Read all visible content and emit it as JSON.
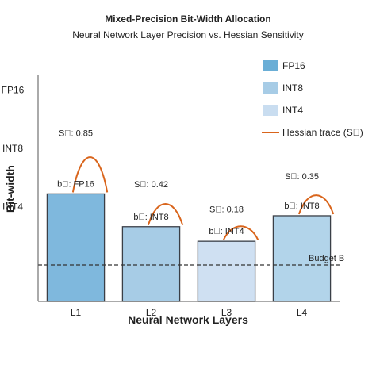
{
  "chart_data": {
    "type": "bar",
    "title": "Mixed-Precision Bit-Width Allocation",
    "subtitle": "Neural Network Layer Precision vs. Hessian Sensitivity",
    "xlabel": "Neural Network Layers",
    "ylabel": "Bit-width",
    "categories": [
      "L1",
      "L2",
      "L3",
      "L4"
    ],
    "values": [
      16,
      8,
      4,
      8
    ],
    "display_heights": [
      29.5,
      20.5,
      16.5,
      23.5
    ],
    "precision_labels": [
      "b\u0000: FP16",
      "b\u0000: INT8",
      "b\u0000: INT4",
      "b\u0000: INT8"
    ],
    "sensitivity": [
      0.85,
      0.42,
      0.18,
      0.35
    ],
    "sensitivity_labels": [
      "S\u0000: 0.85",
      "S\u0000: 0.42",
      "S\u0000: 0.18",
      "S\u0000: 0.35"
    ],
    "bar_colors": [
      "#7fb8dd",
      "#a7cce6",
      "#cfe0f2",
      "#b2d4ea"
    ],
    "y_ticks": [
      {
        "label": "FP16",
        "value": 58
      },
      {
        "label": "INT8",
        "value": 42
      },
      {
        "label": "INT4",
        "value": 26
      }
    ],
    "ylim": [
      0,
      62
    ],
    "budget": {
      "label": "Budget B",
      "value": 10
    },
    "legend_position": "top-right",
    "legend": [
      {
        "label": "FP16",
        "color": "#6aaed6",
        "kind": "box"
      },
      {
        "label": "INT8",
        "color": "#a7cce6",
        "kind": "box"
      },
      {
        "label": "INT4",
        "color": "#c9ddf0",
        "kind": "box"
      },
      {
        "label": "Hessian trace (S\u0000)",
        "color": "#d9651c",
        "kind": "line"
      }
    ],
    "trace_color": "#d9651c",
    "grid": false
  }
}
